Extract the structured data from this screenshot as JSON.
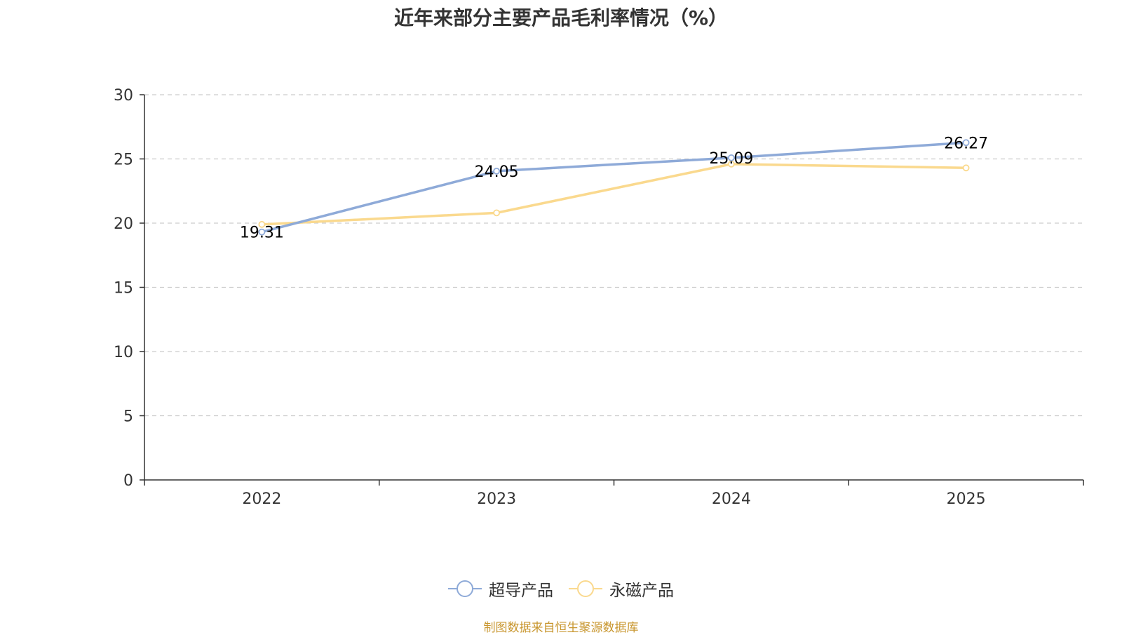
{
  "chart_data": {
    "type": "line",
    "title": "近年来部分主要产品毛利率情况（%）",
    "categories": [
      "2022",
      "2023",
      "2024",
      "2025"
    ],
    "ylim": [
      0,
      30
    ],
    "yticks": [
      0,
      5,
      10,
      15,
      20,
      25,
      30
    ],
    "grid": true,
    "legend_position": "bottom-center",
    "series": [
      {
        "name": "超导产品",
        "values": [
          19.31,
          24.05,
          25.09,
          26.27
        ],
        "color": "#8eaad8",
        "show_labels": true
      },
      {
        "name": "永磁产品",
        "values": [
          19.9,
          20.8,
          24.6,
          24.3
        ],
        "color": "#fad98e",
        "show_labels": false
      }
    ],
    "xlabel": "",
    "ylabel": ""
  },
  "source_note": "制图数据来自恒生聚源数据库"
}
